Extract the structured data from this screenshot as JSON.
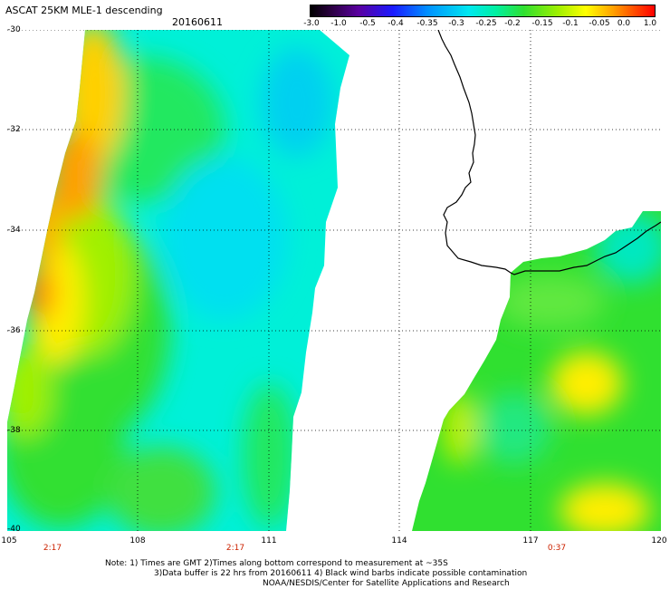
{
  "title": "ASCAT 25KM MLE-1 descending",
  "date": "20160611",
  "colorbar": {
    "labels": [
      "-3.0",
      "-1.0",
      "-0.5",
      "-0.4",
      "-0.35",
      "-0.3",
      "-0.25",
      "-0.2",
      "-0.15",
      "-0.1",
      "-0.05",
      "0.0",
      "1.0"
    ],
    "colors": [
      "#000000",
      "#5a00a0",
      "#1a1aff",
      "#0090ff",
      "#00e8f0",
      "#30e030",
      "#a0f000",
      "#ffff00",
      "#ffa000",
      "#ff0000"
    ]
  },
  "axes": {
    "lon_ticks": [
      "105",
      "108",
      "111",
      "114",
      "117",
      "120"
    ],
    "lat_ticks": [
      "-30",
      "-32",
      "-34",
      "-36",
      "-38",
      "-40"
    ],
    "lon_range": [
      105,
      120
    ],
    "lat_range": [
      -30,
      -40
    ],
    "grid": true
  },
  "pass_times": [
    "2:17",
    "2:17",
    "0:37"
  ],
  "notes": [
    "Note: 1) Times are GMT 2)Times along bottom correspond to measurement at ~35S",
    "3)Data buffer is 22 hrs from 20160611 4) Black wind barbs indicate possible contamination",
    "NOAA/NESDIS/Center for Satellite Applications and Research"
  ]
}
